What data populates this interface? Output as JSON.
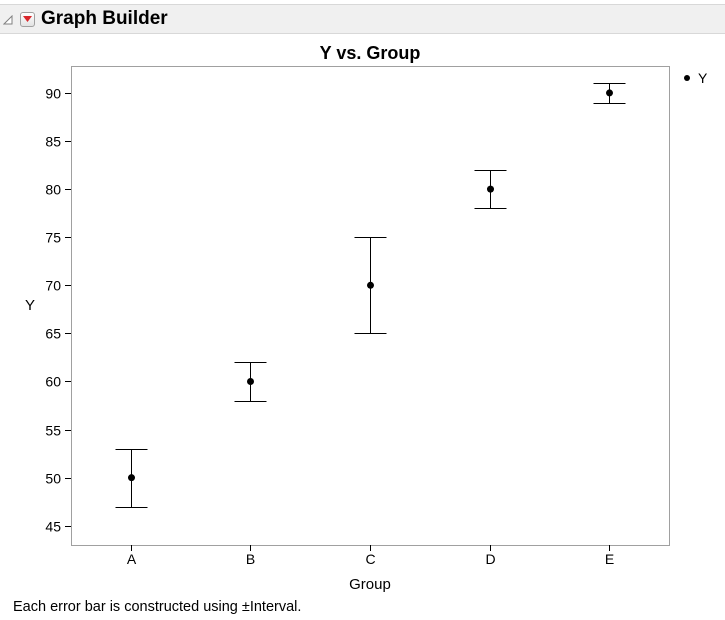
{
  "window": {
    "title": "Graph Builder"
  },
  "icons": {
    "disclosure": "collapse-triangle-icon",
    "menu": "red-triangle-menu-icon"
  },
  "colors": {
    "menu_triangle": "#d9262b",
    "marker": "#000000",
    "frame": "#a0a0a0"
  },
  "chart_data": {
    "type": "scatter",
    "title": "Y vs. Group",
    "xlabel": "Group",
    "ylabel": "Y",
    "categories": [
      "A",
      "B",
      "C",
      "D",
      "E"
    ],
    "series": [
      {
        "name": "Y",
        "values": [
          50,
          60,
          70,
          80,
          90
        ],
        "error_low": [
          47,
          58,
          65,
          78,
          89
        ],
        "error_high": [
          53,
          62,
          75,
          82,
          91
        ]
      }
    ],
    "ylim": [
      43,
      92.8
    ],
    "yticks": [
      45,
      50,
      55,
      60,
      65,
      70,
      75,
      80,
      85,
      90
    ],
    "grid": false,
    "legend": "top-right"
  },
  "footnote": "Each error bar is constructed using ±Interval."
}
